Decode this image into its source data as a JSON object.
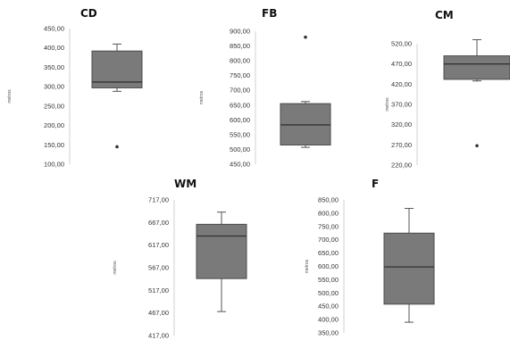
{
  "chart_data": [
    {
      "type": "box",
      "title": "CD",
      "ylabel": "metros",
      "ylim": [
        100,
        450
      ],
      "yticks": [
        "100,00",
        "150,00",
        "200,00",
        "250,00",
        "300,00",
        "350,00",
        "400,00",
        "450,00"
      ],
      "box": {
        "whisker_low": 288,
        "q1": 297,
        "median": 312,
        "q3": 392,
        "whisker_high": 410,
        "outliers": [
          145
        ]
      },
      "colors": {
        "box": "#7a7a7a",
        "line": "#555555"
      }
    },
    {
      "type": "box",
      "title": "FB",
      "ylabel": "metros",
      "ylim": [
        450,
        900
      ],
      "yticks": [
        "450,00",
        "500,00",
        "550,00",
        "600,00",
        "650,00",
        "700,00",
        "750,00",
        "800,00",
        "850,00",
        "900,00"
      ],
      "box": {
        "whisker_low": 507,
        "q1": 515,
        "median": 583,
        "q3": 655,
        "whisker_high": 662,
        "outliers": [
          880
        ]
      },
      "colors": {
        "box": "#7a7a7a",
        "line": "#555555"
      }
    },
    {
      "type": "box",
      "title": "CM",
      "ylabel": "metros",
      "ylim": [
        220,
        520
      ],
      "yticks": [
        "220,00",
        "270,00",
        "320,00",
        "370,00",
        "420,00",
        "470,00",
        "520,00"
      ],
      "box": {
        "whisker_low": 428,
        "q1": 432,
        "median": 470,
        "q3": 490,
        "whisker_high": 530,
        "outliers": [
          268
        ]
      },
      "colors": {
        "box": "#7a7a7a",
        "line": "#555555"
      }
    },
    {
      "type": "box",
      "title": "WM",
      "ylabel": "metros",
      "ylim": [
        417,
        717
      ],
      "yticks": [
        "417,00",
        "467,00",
        "517,00",
        "567,00",
        "617,00",
        "667,00",
        "717,00"
      ],
      "box": {
        "whisker_low": 470,
        "q1": 543,
        "median": 637,
        "q3": 663,
        "whisker_high": 690,
        "outliers": []
      },
      "colors": {
        "box": "#7a7a7a",
        "line": "#555555"
      }
    },
    {
      "type": "box",
      "title": "F",
      "ylabel": "metros",
      "ylim": [
        350,
        850
      ],
      "yticks": [
        "350,00",
        "400,00",
        "450,00",
        "500,00",
        "550,00",
        "600,00",
        "650,00",
        "700,00",
        "750,00",
        "800,00",
        "850,00"
      ],
      "box": {
        "whisker_low": 390,
        "q1": 458,
        "median": 598,
        "q3": 725,
        "whisker_high": 818,
        "outliers": []
      },
      "colors": {
        "box": "#7a7a7a",
        "line": "#555555"
      }
    }
  ]
}
